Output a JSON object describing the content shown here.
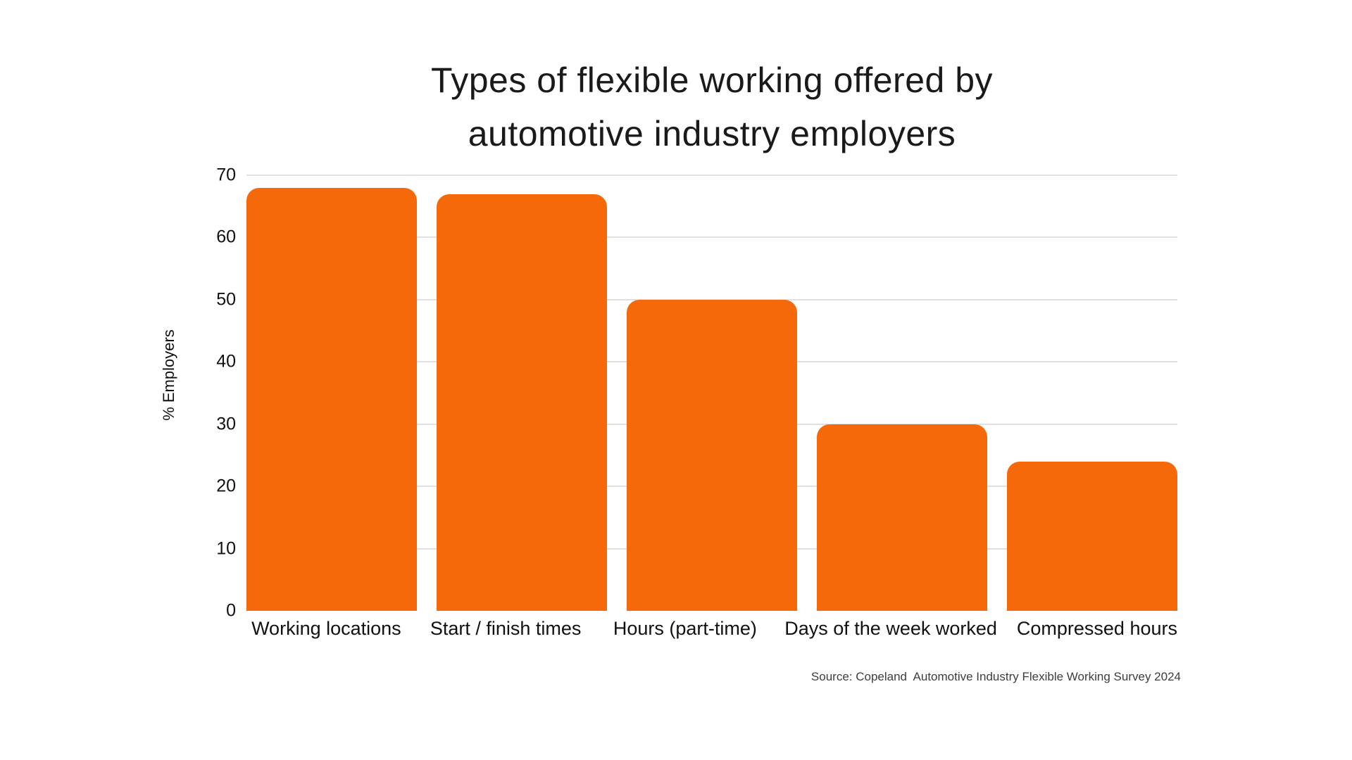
{
  "title": {
    "line1": "Types of flexible working offered by",
    "line2": "automotive industry employers"
  },
  "source": "Source: Copeland  Automotive Industry Flexible Working Survey 2024",
  "colors": {
    "bar": "#F5690B",
    "gridline": "#e0e0e0",
    "background": "#ffffff",
    "text": "#111111"
  },
  "chart_data": {
    "type": "bar",
    "title": "Types of flexible working offered by automotive industry employers",
    "categories": [
      "Working locations",
      "Start / finish times",
      "Hours (part-time)",
      "Days of the week worked",
      "Compressed hours"
    ],
    "values": [
      68,
      67,
      50,
      30,
      24
    ],
    "xlabel": "",
    "ylabel": "% Employers",
    "ylim": [
      0,
      70
    ],
    "yticks": [
      0,
      10,
      20,
      30,
      40,
      50,
      60,
      70
    ],
    "grid": true,
    "legend": false,
    "bar_color": "#F5690B"
  }
}
